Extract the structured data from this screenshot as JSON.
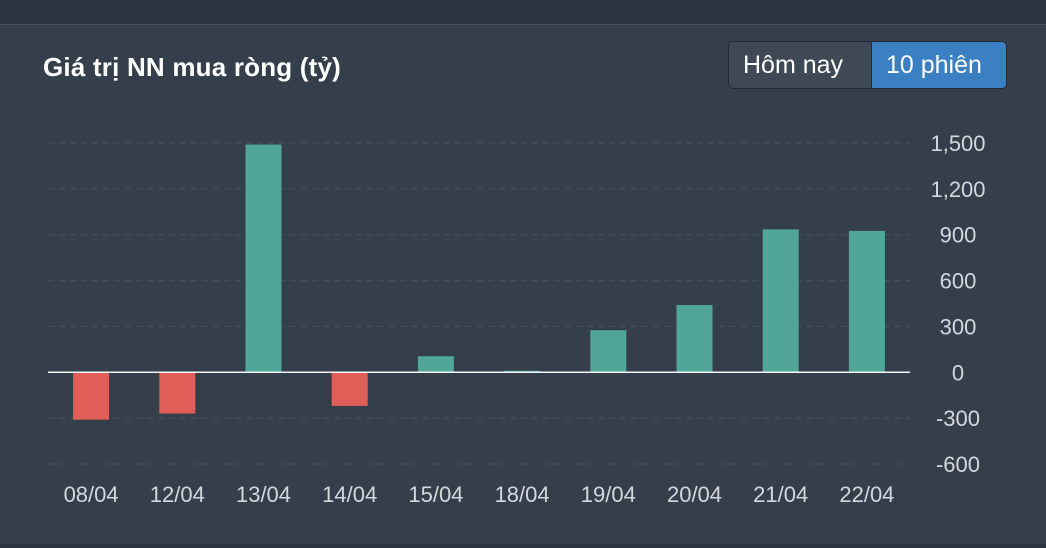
{
  "header": {
    "title": "Giá trị NN mua ròng (tỷ)"
  },
  "toggle": {
    "today_label": "Hôm nay",
    "sessions_label": "10 phiên",
    "selected": "10 phiên"
  },
  "colors": {
    "positive": "#52a699",
    "negative": "#e05e57",
    "selected_button": "#3c80c4"
  },
  "chart_data": {
    "type": "bar",
    "title": "Giá trị NN mua ròng (tỷ)",
    "categories": [
      "08/04",
      "12/04",
      "13/04",
      "14/04",
      "15/04",
      "18/04",
      "19/04",
      "20/04",
      "21/04",
      "22/04"
    ],
    "values": [
      -310,
      -270,
      1490,
      -220,
      105,
      10,
      275,
      440,
      935,
      925
    ],
    "y_ticks": [
      "1,500",
      "1,200",
      "900",
      "600",
      "300",
      "0",
      "-300",
      "-600"
    ],
    "ylim": [
      -600,
      1500
    ],
    "y_axis_side": "right",
    "grid": true,
    "legend": "none"
  }
}
